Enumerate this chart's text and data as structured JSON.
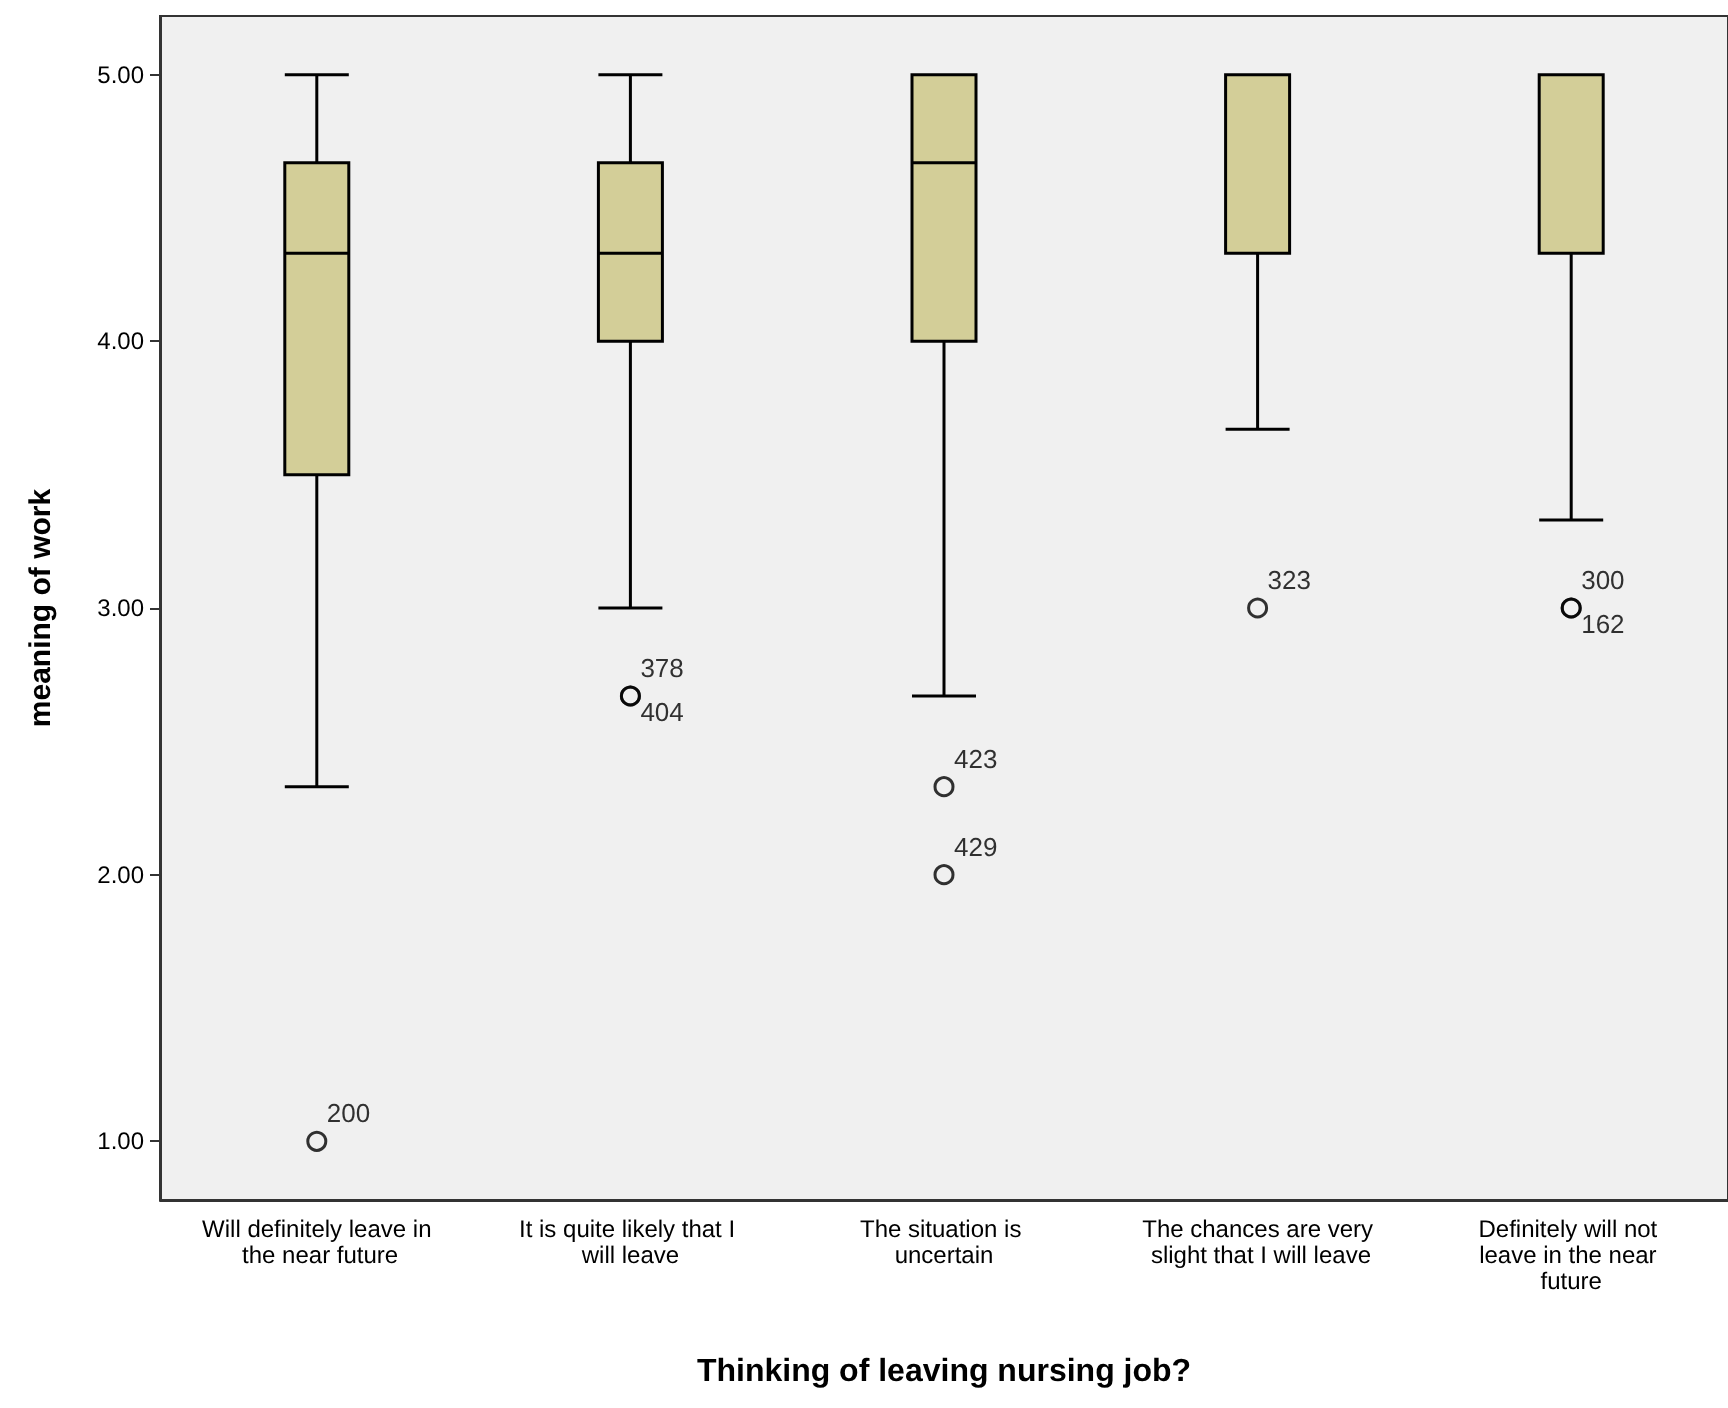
{
  "chart_data": {
    "type": "box",
    "xlabel": "Thinking of leaving nursing job?",
    "ylabel": "meaning of work",
    "categories": [
      "Will definitely leave in the near future",
      "It is quite likely that I will leave",
      "The situation is uncertain",
      "The chances are very slight that I will leave",
      "Definitely will not leave in the near future"
    ],
    "color": "#d3ce98",
    "boxes": [
      {
        "low": 2.33,
        "q1": 3.5,
        "median": 4.33,
        "q3": 4.67,
        "high": 5.0
      },
      {
        "low": 3.0,
        "q1": 4.0,
        "median": 4.33,
        "q3": 4.67,
        "high": 5.0
      },
      {
        "low": 2.67,
        "q1": 4.0,
        "median": 4.67,
        "q3": 5.0,
        "high": 5.0
      },
      {
        "low": 3.67,
        "q1": 4.33,
        "median": 5.0,
        "q3": 5.0,
        "high": 5.0
      },
      {
        "low": 3.33,
        "q1": 4.33,
        "median": 5.0,
        "q3": 5.0,
        "high": 5.0
      }
    ],
    "series": [
      {
        "type": "scatter",
        "marker": "circle",
        "color": "#000000",
        "x": [
          "Will definitely leave in the near future",
          "It is quite likely that I will leave",
          "It is quite likely that I will leave",
          "The situation is uncertain",
          "The situation is uncertain",
          "The chances are very slight that I will leave",
          "Definitely will not leave in the near future",
          "Definitely will not leave in the near future"
        ],
        "values": [
          1.0,
          2.67,
          2.67,
          2.33,
          2.0,
          3.0,
          3.0,
          3.0
        ]
      }
    ],
    "annotations": [
      {
        "text": "200",
        "x": "Will definitely leave in the near future",
        "y": 1.0
      },
      {
        "text": "378",
        "x": "It is quite likely that I will leave",
        "y": 2.67
      },
      {
        "text": "404",
        "x": "It is quite likely that I will leave",
        "y": 2.67
      },
      {
        "text": "423",
        "x": "The situation is uncertain",
        "y": 2.33
      },
      {
        "text": "429",
        "x": "The situation is uncertain",
        "y": 2.0
      },
      {
        "text": "323",
        "x": "The chances are very slight that I will leave",
        "y": 3.0
      },
      {
        "text": "300",
        "x": "Definitely will not leave in the near future",
        "y": 3.0
      },
      {
        "text": "162",
        "x": "Definitely will not leave in the near future",
        "y": 3.0
      }
    ],
    "ylim": [
      0.78,
      5.22
    ],
    "yticks": [
      {
        "value": 1,
        "label": "1.00"
      },
      {
        "value": 2,
        "label": "2.00"
      },
      {
        "value": 3,
        "label": "3.00"
      },
      {
        "value": 4,
        "label": "4.00"
      },
      {
        "value": 5,
        "label": "5.00"
      }
    ]
  }
}
